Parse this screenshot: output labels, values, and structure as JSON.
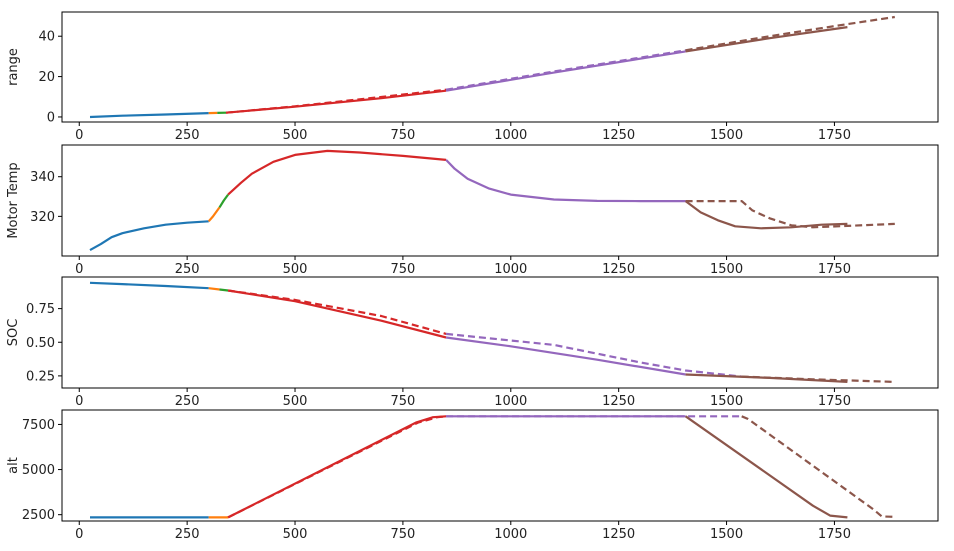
{
  "chart_data": [
    {
      "type": "line",
      "title": "",
      "xlabel": "",
      "ylabel": "range",
      "xlim": [
        -40,
        1990
      ],
      "ylim": [
        -2.5,
        52
      ],
      "xticks": [
        0,
        250,
        500,
        750,
        1000,
        1250,
        1500,
        1750
      ],
      "yticks": [
        0,
        20,
        40
      ],
      "grid": false,
      "series": [
        {
          "color": "#1f77b4",
          "dash": false,
          "points": [
            [
              25,
              0
            ],
            [
              100,
              0.6
            ],
            [
              200,
              1.2
            ],
            [
              300,
              1.9
            ]
          ]
        },
        {
          "color": "#ff7f0e",
          "dash": false,
          "points": [
            [
              300,
              1.9
            ],
            [
              320,
              2.0
            ]
          ]
        },
        {
          "color": "#2ca02c",
          "dash": false,
          "points": [
            [
              320,
              2.0
            ],
            [
              340,
              2.1
            ]
          ]
        },
        {
          "color": "#d62728",
          "dash": false,
          "points": [
            [
              340,
              2.1
            ],
            [
              500,
              5.1
            ],
            [
              700,
              9.3
            ],
            [
              850,
              13.0
            ]
          ]
        },
        {
          "color": "#d62728",
          "dash": true,
          "points": [
            [
              340,
              2.1
            ],
            [
              500,
              5.3
            ],
            [
              700,
              9.9
            ],
            [
              850,
              13.5
            ]
          ]
        },
        {
          "color": "#9467bd",
          "dash": false,
          "points": [
            [
              850,
              13.0
            ],
            [
              1100,
              22.0
            ],
            [
              1405,
              32.5
            ]
          ]
        },
        {
          "color": "#9467bd",
          "dash": true,
          "points": [
            [
              850,
              13.5
            ],
            [
              1100,
              22.5
            ],
            [
              1405,
              33.0
            ]
          ]
        },
        {
          "color": "#8c564b",
          "dash": false,
          "points": [
            [
              1405,
              32.5
            ],
            [
              1600,
              39.0
            ],
            [
              1780,
              44.5
            ]
          ]
        },
        {
          "color": "#8c564b",
          "dash": true,
          "points": [
            [
              1405,
              33.0
            ],
            [
              1600,
              40.0
            ],
            [
              1780,
              46.0
            ],
            [
              1890,
              49.5
            ]
          ]
        }
      ]
    },
    {
      "type": "line",
      "title": "",
      "xlabel": "",
      "ylabel": "Motor Temp",
      "xlim": [
        -40,
        1990
      ],
      "ylim": [
        300,
        356
      ],
      "xticks": [
        0,
        250,
        500,
        750,
        1000,
        1250,
        1500,
        1750
      ],
      "yticks": [
        320,
        340
      ],
      "grid": false,
      "series": [
        {
          "color": "#1f77b4",
          "dash": false,
          "points": [
            [
              25,
              303
            ],
            [
              50,
              306
            ],
            [
              75,
              309.5
            ],
            [
              100,
              311.5
            ],
            [
              150,
              314
            ],
            [
              200,
              315.8
            ],
            [
              250,
              316.8
            ],
            [
              300,
              317.5
            ]
          ]
        },
        {
          "color": "#ff7f0e",
          "dash": false,
          "points": [
            [
              300,
              317.5
            ],
            [
              310,
              320
            ],
            [
              325,
              324.5
            ]
          ]
        },
        {
          "color": "#2ca02c",
          "dash": false,
          "points": [
            [
              325,
              324.5
            ],
            [
              335,
              328
            ],
            [
              345,
              331
            ]
          ]
        },
        {
          "color": "#d62728",
          "dash": false,
          "points": [
            [
              345,
              331
            ],
            [
              375,
              337
            ],
            [
              400,
              341.5
            ],
            [
              450,
              347.5
            ],
            [
              500,
              351
            ],
            [
              575,
              353
            ],
            [
              650,
              352.2
            ],
            [
              750,
              350.5
            ],
            [
              850,
              348.5
            ]
          ]
        },
        {
          "color": "#9467bd",
          "dash": false,
          "points": [
            [
              850,
              348.5
            ],
            [
              870,
              344
            ],
            [
              900,
              339
            ],
            [
              950,
              334
            ],
            [
              1000,
              331
            ],
            [
              1100,
              328.5
            ],
            [
              1200,
              327.8
            ],
            [
              1300,
              327.7
            ],
            [
              1405,
              327.7
            ]
          ]
        },
        {
          "color": "#8c564b",
          "dash": false,
          "points": [
            [
              1405,
              327.7
            ],
            [
              1440,
              322
            ],
            [
              1480,
              318
            ],
            [
              1520,
              315
            ],
            [
              1580,
              314
            ],
            [
              1650,
              314.5
            ],
            [
              1720,
              315.8
            ],
            [
              1780,
              316.2
            ]
          ]
        },
        {
          "color": "#8c564b",
          "dash": true,
          "points": [
            [
              1405,
              327.7
            ],
            [
              1535,
              327.7
            ],
            [
              1560,
              323
            ],
            [
              1600,
              319
            ],
            [
              1650,
              315.5
            ],
            [
              1700,
              314.5
            ],
            [
              1780,
              315.2
            ],
            [
              1890,
              316.2
            ]
          ]
        }
      ]
    },
    {
      "type": "line",
      "title": "",
      "xlabel": "",
      "ylabel": "SOC",
      "xlim": [
        -40,
        1990
      ],
      "ylim": [
        0.16,
        0.985
      ],
      "xticks": [
        0,
        250,
        500,
        750,
        1000,
        1250,
        1500,
        1750
      ],
      "yticks": [
        0.25,
        0.5,
        0.75
      ],
      "grid": false,
      "series": [
        {
          "color": "#1f77b4",
          "dash": false,
          "points": [
            [
              25,
              0.942
            ],
            [
              100,
              0.932
            ],
            [
              200,
              0.918
            ],
            [
              300,
              0.902
            ]
          ]
        },
        {
          "color": "#ff7f0e",
          "dash": false,
          "points": [
            [
              300,
              0.902
            ],
            [
              325,
              0.892
            ]
          ]
        },
        {
          "color": "#2ca02c",
          "dash": false,
          "points": [
            [
              325,
              0.892
            ],
            [
              345,
              0.885
            ]
          ]
        },
        {
          "color": "#d62728",
          "dash": false,
          "points": [
            [
              345,
              0.885
            ],
            [
              500,
              0.805
            ],
            [
              700,
              0.66
            ],
            [
              850,
              0.535
            ]
          ]
        },
        {
          "color": "#d62728",
          "dash": true,
          "points": [
            [
              345,
              0.885
            ],
            [
              500,
              0.815
            ],
            [
              700,
              0.695
            ],
            [
              850,
              0.562
            ]
          ]
        },
        {
          "color": "#9467bd",
          "dash": false,
          "points": [
            [
              850,
              0.535
            ],
            [
              1000,
              0.47
            ],
            [
              1200,
              0.37
            ],
            [
              1405,
              0.26
            ]
          ]
        },
        {
          "color": "#9467bd",
          "dash": true,
          "points": [
            [
              850,
              0.562
            ],
            [
              1100,
              0.48
            ],
            [
              1300,
              0.35
            ],
            [
              1405,
              0.29
            ],
            [
              1535,
              0.245
            ]
          ]
        },
        {
          "color": "#8c564b",
          "dash": false,
          "points": [
            [
              1405,
              0.26
            ],
            [
              1600,
              0.235
            ],
            [
              1780,
              0.205
            ]
          ]
        },
        {
          "color": "#8c564b",
          "dash": true,
          "points": [
            [
              1535,
              0.245
            ],
            [
              1700,
              0.225
            ],
            [
              1890,
              0.205
            ]
          ]
        }
      ]
    },
    {
      "type": "line",
      "title": "",
      "xlabel": "",
      "ylabel": "alt",
      "xlim": [
        -40,
        1990
      ],
      "ylim": [
        2150,
        8300
      ],
      "xticks": [
        0,
        250,
        500,
        750,
        1000,
        1250,
        1500,
        1750
      ],
      "yticks": [
        2500,
        5000,
        7500
      ],
      "grid": false,
      "series": [
        {
          "color": "#1f77b4",
          "dash": false,
          "points": [
            [
              25,
              2350
            ],
            [
              300,
              2350
            ]
          ]
        },
        {
          "color": "#ff7f0e",
          "dash": false,
          "points": [
            [
              300,
              2350
            ],
            [
              345,
              2350
            ]
          ]
        },
        {
          "color": "#d62728",
          "dash": false,
          "points": [
            [
              345,
              2350
            ],
            [
              780,
              7600
            ],
            [
              820,
              7900
            ],
            [
              850,
              7950
            ]
          ]
        },
        {
          "color": "#d62728",
          "dash": true,
          "points": [
            [
              345,
              2350
            ],
            [
              785,
              7600
            ],
            [
              830,
              7900
            ],
            [
              850,
              7950
            ]
          ]
        },
        {
          "color": "#9467bd",
          "dash": false,
          "points": [
            [
              850,
              7950
            ],
            [
              1405,
              7950
            ]
          ]
        },
        {
          "color": "#9467bd",
          "dash": true,
          "points": [
            [
              850,
              7950
            ],
            [
              1535,
              7950
            ]
          ]
        },
        {
          "color": "#8c564b",
          "dash": false,
          "points": [
            [
              1405,
              7950
            ],
            [
              1700,
              3000
            ],
            [
              1740,
              2450
            ],
            [
              1780,
              2350
            ]
          ]
        },
        {
          "color": "#8c564b",
          "dash": true,
          "points": [
            [
              1535,
              7950
            ],
            [
              1550,
              7800
            ],
            [
              1840,
              2800
            ],
            [
              1860,
              2400
            ],
            [
              1890,
              2380
            ]
          ]
        }
      ]
    }
  ]
}
